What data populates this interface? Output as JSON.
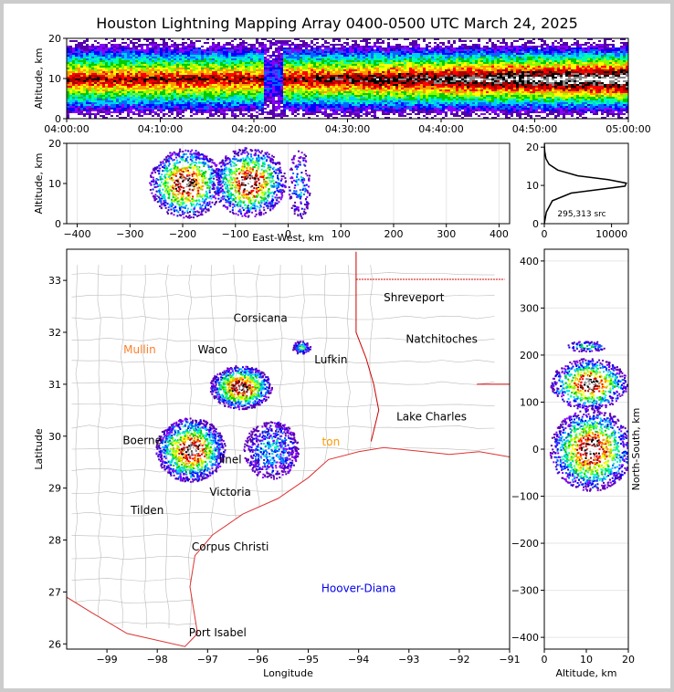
{
  "title": "Houston Lightning Mapping Array 0400-0500 UTC March 24, 2025",
  "colors": {
    "density_scale": [
      "#5500aa",
      "#8800ff",
      "#0000ff",
      "#0066ff",
      "#00ccff",
      "#00ffaa",
      "#00cc00",
      "#88ff00",
      "#ffff00",
      "#ff9900",
      "#ff0000",
      "#aa0000",
      "#000000",
      "#888888",
      "#ffffff"
    ],
    "coast": "#dd3333",
    "county": "#bbbbbb",
    "state": "#cc0000"
  },
  "chart_data": [
    {
      "type": "heatmap",
      "panel": "altitude-time",
      "ylabel": "Altitude, km",
      "xlabel": "",
      "x_ticks": [
        "04:00:00",
        "04:10:00",
        "04:20:00",
        "04:30:00",
        "04:40:00",
        "04:50:00",
        "05:00:00"
      ],
      "y_ticks": [
        "0",
        "10",
        "20"
      ],
      "xlim": [
        "04:00:00",
        "05:00:00"
      ],
      "ylim": [
        0,
        20
      ],
      "description_values": {
        "core_altitude_km": 10,
        "gap_times": [
          "04:21:00",
          "04:23:00"
        ]
      }
    },
    {
      "type": "heatmap",
      "panel": "altitude-eastwest",
      "xlabel": "East-West, km",
      "ylabel": "Altitude, km",
      "x_ticks": [
        "−400",
        "−300",
        "−200",
        "−100",
        "0",
        "100",
        "200",
        "300",
        "400"
      ],
      "y_ticks": [
        "0",
        "10",
        "20"
      ],
      "xlim": [
        -420,
        420
      ],
      "ylim": [
        0,
        20
      ],
      "cells": [
        {
          "x": -195,
          "z": 10.2,
          "level": 1.0
        },
        {
          "x": -75,
          "z": 10.5,
          "level": 1.0
        },
        {
          "x": 20,
          "z": 10,
          "level": 0.35
        }
      ]
    },
    {
      "type": "line",
      "panel": "source-altitude-histogram",
      "x_ticks": [
        "0",
        "10000"
      ],
      "y_ticks": [
        "0",
        "10",
        "20"
      ],
      "xlim": [
        0,
        12500
      ],
      "ylim": [
        0,
        21
      ],
      "annotation": "295,313 src",
      "x": [
        0,
        300,
        1200,
        4000,
        8500,
        12000,
        12200,
        9500,
        5000,
        2000,
        700,
        250,
        60,
        0
      ],
      "y": [
        0,
        3,
        6,
        8,
        9,
        9.8,
        10.6,
        11.5,
        12.5,
        14,
        15.5,
        17,
        19,
        21
      ]
    },
    {
      "type": "heatmap",
      "panel": "plan-view-map",
      "xlabel": "Longitude",
      "ylabel": "Latitude",
      "x_ticks": [
        "−99",
        "−98",
        "−97",
        "−96",
        "−95",
        "−94",
        "−93",
        "−92",
        "−91"
      ],
      "y_ticks": [
        "26",
        "27",
        "28",
        "29",
        "30",
        "31",
        "32",
        "33"
      ],
      "xlim": [
        -99.8,
        -91.0
      ],
      "ylim": [
        25.9,
        33.6
      ],
      "cells": [
        {
          "lon": -97.35,
          "lat": 29.75,
          "level": 1.0
        },
        {
          "lon": -96.35,
          "lat": 30.95,
          "level": 1.0
        },
        {
          "lon": -95.75,
          "lat": 29.75,
          "level": 0.35
        },
        {
          "lon": -95.15,
          "lat": 31.72,
          "level": 0.5
        }
      ],
      "city_labels": [
        {
          "text": "Shreveport",
          "lon": -92.9,
          "lat": 32.6,
          "color": "#000000"
        },
        {
          "text": "Corsicana",
          "lon": -95.95,
          "lat": 32.2,
          "color": "#000000"
        },
        {
          "text": "Mullin",
          "lon": -98.35,
          "lat": 31.6,
          "color": "#ff7f2a"
        },
        {
          "text": "Waco",
          "lon": -96.9,
          "lat": 31.6,
          "color": "#000000"
        },
        {
          "text": "Natchitoches",
          "lon": -92.35,
          "lat": 31.8,
          "color": "#000000"
        },
        {
          "text": "Lufkin",
          "lon": -94.55,
          "lat": 31.4,
          "color": "#000000"
        },
        {
          "text": "Lake Charles",
          "lon": -92.55,
          "lat": 30.3,
          "color": "#000000"
        },
        {
          "text": "Boerne",
          "lon": -98.3,
          "lat": 29.85,
          "color": "#000000"
        },
        {
          "text": "ton",
          "lon": -94.55,
          "lat": 29.82,
          "color": "#ff9900"
        },
        {
          "text": "linel",
          "lon": -96.55,
          "lat": 29.48,
          "color": "#000000"
        },
        {
          "text": "Victoria",
          "lon": -96.55,
          "lat": 28.85,
          "color": "#000000"
        },
        {
          "text": "Tilden",
          "lon": -98.2,
          "lat": 28.5,
          "color": "#000000"
        },
        {
          "text": "Corpus Christi",
          "lon": -96.55,
          "lat": 27.8,
          "color": "#000000"
        },
        {
          "text": "Hoover-Diana",
          "lon": -94.0,
          "lat": 27.0,
          "color": "#0000ee"
        },
        {
          "text": "Port Isabel",
          "lon": -96.8,
          "lat": 26.15,
          "color": "#000000"
        }
      ]
    },
    {
      "type": "heatmap",
      "panel": "northsouth-altitude",
      "xlabel": "Altitude, km",
      "ylabel": "North-South, km",
      "x_ticks": [
        "0",
        "10",
        "20"
      ],
      "y_ticks": [
        "−400",
        "−300",
        "−200",
        "−100",
        "0",
        "100",
        "200",
        "300",
        "400"
      ],
      "xlim": [
        0,
        20
      ],
      "ylim": [
        -425,
        425
      ],
      "cells": [
        {
          "z": 11,
          "y": 0,
          "level": 1.0
        },
        {
          "z": 10.5,
          "y": 140,
          "level": 1.0
        },
        {
          "z": 10,
          "y": 220,
          "level": 0.45
        }
      ]
    }
  ]
}
